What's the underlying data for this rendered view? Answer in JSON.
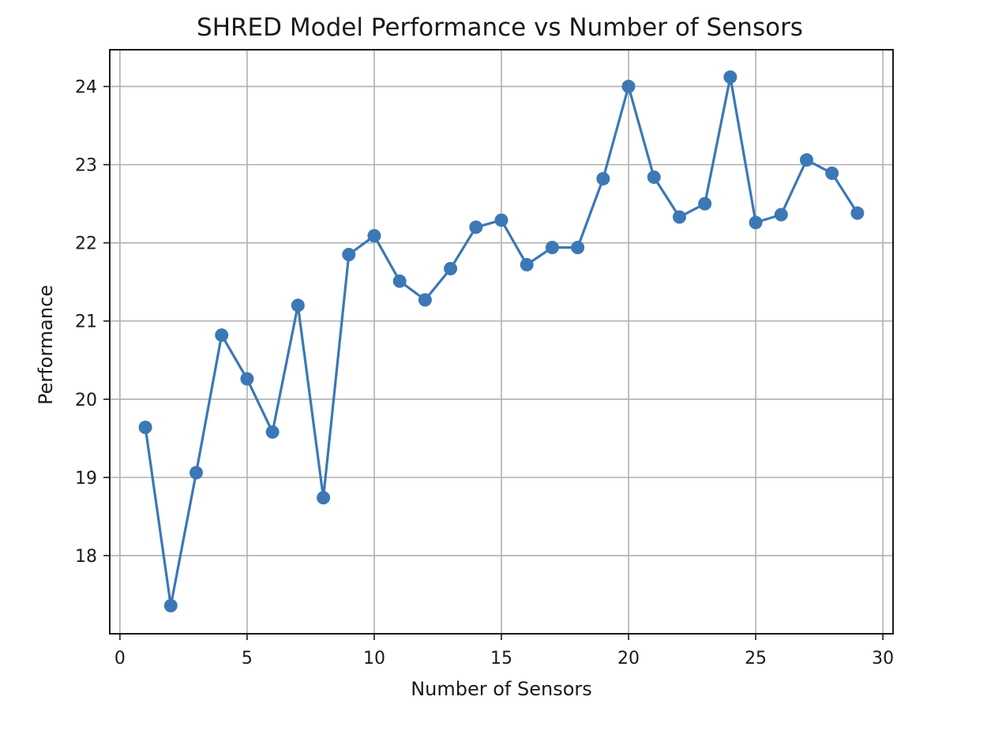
{
  "chart_data": {
    "type": "line",
    "title": "SHRED Model Performance vs Number of Sensors",
    "xlabel": "Number of Sensors",
    "ylabel": "Performance",
    "xlim": [
      -0.4,
      30.4
    ],
    "ylim": [
      17.0,
      24.47
    ],
    "xticks": [
      0,
      5,
      10,
      15,
      20,
      25,
      30
    ],
    "yticks": [
      18,
      19,
      20,
      21,
      22,
      23,
      24
    ],
    "grid": true,
    "legend": "none",
    "color": "#3b78b5",
    "series": [
      {
        "x": [
          1,
          2,
          3,
          4,
          5,
          6,
          7,
          8,
          9,
          10,
          11,
          12,
          13,
          14,
          15,
          16,
          17,
          18,
          19,
          20,
          21,
          22,
          23,
          24,
          25,
          26,
          27,
          28,
          29
        ],
        "values": [
          19.64,
          17.36,
          19.06,
          20.82,
          20.26,
          19.58,
          21.2,
          18.74,
          21.85,
          22.09,
          21.51,
          21.27,
          21.67,
          22.2,
          22.29,
          21.72,
          21.94,
          21.94,
          22.82,
          24.0,
          22.84,
          22.33,
          22.5,
          24.12,
          22.26,
          22.36,
          23.06,
          22.89,
          22.38
        ]
      }
    ]
  }
}
